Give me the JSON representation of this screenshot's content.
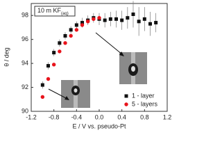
{
  "chart_data": {
    "type": "scatter",
    "annotation": "10 m KF",
    "annotation_sub": "(aq)",
    "x_label": "E / V vs. pseudo-Pt",
    "y_label": "θ / deg",
    "xlim": [
      -1.2,
      1.2
    ],
    "xticks": [
      -1.2,
      -0.8,
      -0.4,
      {
        "value": 0,
        "label": "0.0"
      },
      0.4,
      0.8,
      1.2
    ],
    "ylim": [
      90,
      99
    ],
    "yticks": [
      90,
      92,
      94,
      96,
      98
    ],
    "legend": "lower right",
    "series": [
      {
        "name": "1 - layer",
        "color": "#111111",
        "marker": "square",
        "x": [
          -1.0,
          -0.9,
          -0.8,
          -0.7,
          -0.6,
          -0.5,
          -0.4,
          -0.3,
          -0.2,
          -0.1,
          0.0,
          0.1,
          0.2,
          0.3,
          0.4,
          0.5,
          0.6,
          0.7,
          0.8,
          0.9,
          1.0
        ],
        "values": [
          92.2,
          93.8,
          94.9,
          95.7,
          96.3,
          96.8,
          97.2,
          97.4,
          97.6,
          97.8,
          97.7,
          97.6,
          97.7,
          97.7,
          97.6,
          97.8,
          98.1,
          97.5,
          97.7,
          97.3,
          97.4
        ],
        "errors": [
          0.3,
          0.3,
          0.3,
          0.3,
          0.3,
          0.3,
          0.3,
          0.4,
          0.4,
          0.4,
          0.5,
          0.6,
          0.6,
          0.7,
          0.8,
          0.9,
          1.1,
          1.2,
          1.0,
          1.0,
          0.8
        ]
      },
      {
        "name": "5 - layers",
        "color": "#e8141c",
        "marker": "circle",
        "x": [
          -1.0,
          -0.9,
          -0.8,
          -0.7,
          -0.6,
          -0.5,
          -0.4,
          -0.3,
          -0.2,
          -0.1,
          0.0
        ],
        "values": [
          91.2,
          92.7,
          93.9,
          95.0,
          95.7,
          96.3,
          96.8,
          97.2,
          97.5,
          97.7,
          97.8
        ]
      }
    ]
  }
}
